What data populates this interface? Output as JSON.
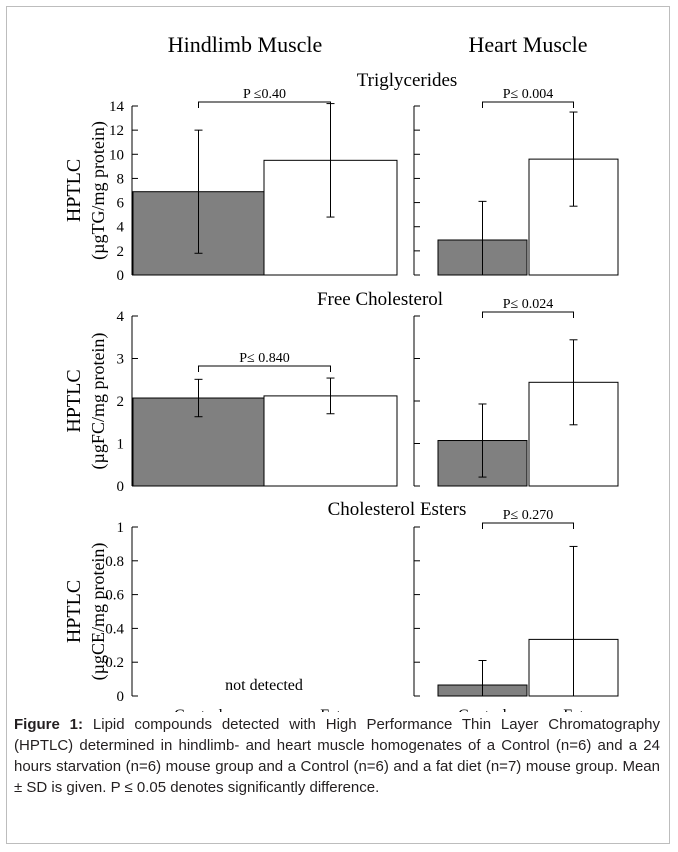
{
  "column_titles": [
    "Hindlimb Muscle",
    "Heart Muscle"
  ],
  "x_categories": [
    "Control",
    "Fat"
  ],
  "colors": {
    "control": "#808080",
    "fat": "#ffffff",
    "stroke": "#000000"
  },
  "caption": {
    "label": "Figure 1:",
    "text": "Lipid compounds detected with High Performance Thin Layer Chromatography (HPTLC) determined in hindlimb- and heart muscle homogenates of a Control (n=6) and a 24 hours starvation (n=6) mouse group and a Control (n=6) and a fat diet (n=7) mouse group. Mean ± SD is given. P ≤ 0.05 denotes significantly difference."
  },
  "chart_data": [
    {
      "type": "bar",
      "row_title": "Triglycerides",
      "ylabel": [
        "HPTLC",
        "(µgTG/mg protein)"
      ],
      "ylim": [
        0,
        14
      ],
      "yticks": [
        0,
        2,
        4,
        6,
        8,
        10,
        12,
        14
      ],
      "categories": [
        "Control",
        "Fat"
      ],
      "panels": [
        {
          "tissue": "Hindlimb Muscle",
          "values": [
            6.9,
            9.5
          ],
          "errors": [
            5.1,
            4.7
          ],
          "p_label": "P ≤0.40",
          "note": ""
        },
        {
          "tissue": "Heart Muscle",
          "values": [
            2.9,
            9.6
          ],
          "errors": [
            3.2,
            3.9
          ],
          "p_label": "P≤ 0.004",
          "note": ""
        }
      ]
    },
    {
      "type": "bar",
      "row_title": "Free Cholesterol",
      "ylabel": [
        "HPTLC",
        "(µgFC/mg protein)"
      ],
      "ylim": [
        0,
        4
      ],
      "yticks": [
        0,
        1,
        2,
        3,
        4
      ],
      "categories": [
        "Control",
        "Fat"
      ],
      "panels": [
        {
          "tissue": "Hindlimb Muscle",
          "values": [
            2.07,
            2.12
          ],
          "errors": [
            0.44,
            0.42
          ],
          "p_label": "P≤ 0.840",
          "note": ""
        },
        {
          "tissue": "Heart Muscle",
          "values": [
            1.07,
            2.44
          ],
          "errors": [
            0.86,
            1.0
          ],
          "p_label": "P≤ 0.024",
          "note": ""
        }
      ]
    },
    {
      "type": "bar",
      "row_title": "Cholesterol Esters",
      "ylabel": [
        "HPTLC",
        "(µgCE/mg protein)"
      ],
      "ylim": [
        0,
        1
      ],
      "yticks": [
        0,
        0.2,
        0.4,
        0.6,
        0.8,
        1
      ],
      "categories": [
        "Control",
        "Fat"
      ],
      "panels": [
        {
          "tissue": "Hindlimb Muscle",
          "values": null,
          "errors": null,
          "p_label": "",
          "note": "not detected"
        },
        {
          "tissue": "Heart Muscle",
          "values": [
            0.065,
            0.335
          ],
          "errors": [
            0.145,
            0.55
          ],
          "p_label": "P≤ 0.270",
          "note": ""
        }
      ]
    }
  ]
}
